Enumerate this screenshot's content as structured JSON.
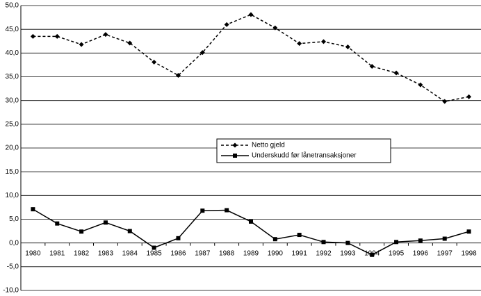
{
  "chart_data": {
    "type": "line",
    "categories": [
      "1980",
      "1981",
      "1982",
      "1983",
      "1984",
      "1985",
      "1986",
      "1987",
      "1988",
      "1989",
      "1990",
      "1991",
      "1992",
      "1993",
      "1994",
      "1995",
      "1996",
      "1997",
      "1998"
    ],
    "series": [
      {
        "name": "Netto gjeld",
        "color": "#000000",
        "dash": true,
        "marker": "diamond",
        "values": [
          43.5,
          43.5,
          41.8,
          43.9,
          42.1,
          38.1,
          35.3,
          40.1,
          46.0,
          48.1,
          45.3,
          42.0,
          42.4,
          41.3,
          37.2,
          35.8,
          33.3,
          29.8,
          30.8
        ]
      },
      {
        "name": "Underskudd før lånetransaksjoner",
        "color": "#000000",
        "dash": false,
        "marker": "square",
        "values": [
          7.1,
          4.1,
          2.4,
          4.3,
          2.5,
          -1.0,
          1.0,
          6.8,
          6.9,
          4.5,
          0.8,
          1.7,
          0.2,
          0.0,
          -2.5,
          0.2,
          0.5,
          0.9,
          2.4
        ]
      }
    ],
    "ylim": [
      -10,
      50
    ],
    "yticks": [
      {
        "value": -10,
        "label": "-10,0"
      },
      {
        "value": -5,
        "label": "-5,0"
      },
      {
        "value": 0,
        "label": "0,0"
      },
      {
        "value": 5,
        "label": "5,0"
      },
      {
        "value": 10,
        "label": "10,0"
      },
      {
        "value": 15,
        "label": "15,0"
      },
      {
        "value": 20,
        "label": "20,0"
      },
      {
        "value": 25,
        "label": "25,0"
      },
      {
        "value": 30,
        "label": "30,0"
      },
      {
        "value": 35,
        "label": "35,0"
      },
      {
        "value": 40,
        "label": "40,0"
      },
      {
        "value": 45,
        "label": "45,0"
      },
      {
        "value": 50,
        "label": "50,0"
      }
    ],
    "grid": true
  }
}
